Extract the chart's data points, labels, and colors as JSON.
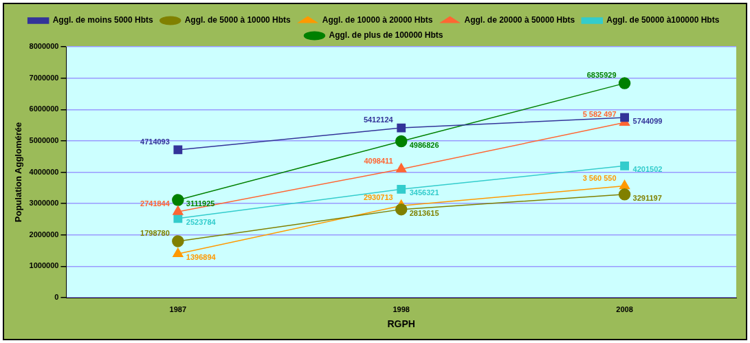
{
  "chart_data": {
    "type": "line",
    "xlabel": "RGPH",
    "ylabel": "Population Agglomérée",
    "categories": [
      "1987",
      "1998",
      "2008"
    ],
    "ylim": [
      0,
      8000000
    ],
    "yticks": [
      0,
      1000000,
      2000000,
      3000000,
      4000000,
      5000000,
      6000000,
      7000000,
      8000000
    ],
    "grid": "y",
    "legend": "top",
    "data_labels": true,
    "series": [
      {
        "name": "Aggl. de moins 5000 Hbts",
        "color": "#333399",
        "marker": "square",
        "values": [
          4714093,
          5412124,
          5744099
        ]
      },
      {
        "name": "Aggl. de 5000 à 10000 Hbts",
        "color": "#808000",
        "marker": "circle",
        "values": [
          1798780,
          2813615,
          3291197
        ]
      },
      {
        "name": "Aggl. de 10000 à 20000 Hbts",
        "color": "#ff9900",
        "marker": "triangle",
        "values": [
          1396894,
          2930713,
          3560550
        ],
        "value_labels": [
          "1396894",
          "2930713",
          "3 560 550"
        ]
      },
      {
        "name": "Aggl. de 20000 à 50000 Hbts",
        "color": "#ff6633",
        "marker": "triangle",
        "values": [
          2741844,
          4098411,
          5582497
        ],
        "value_labels": [
          "2741844",
          "4098411",
          "5 582 497"
        ]
      },
      {
        "name": "Aggl. de 50000 à100000 Hbts",
        "color": "#33cccc",
        "marker": "square",
        "values": [
          2523784,
          3456321,
          4201502
        ]
      },
      {
        "name": "Aggl. de plus de 100000 Hbts",
        "color": "#008000",
        "marker": "circle",
        "values": [
          3111925,
          4986826,
          6835929
        ]
      }
    ]
  }
}
